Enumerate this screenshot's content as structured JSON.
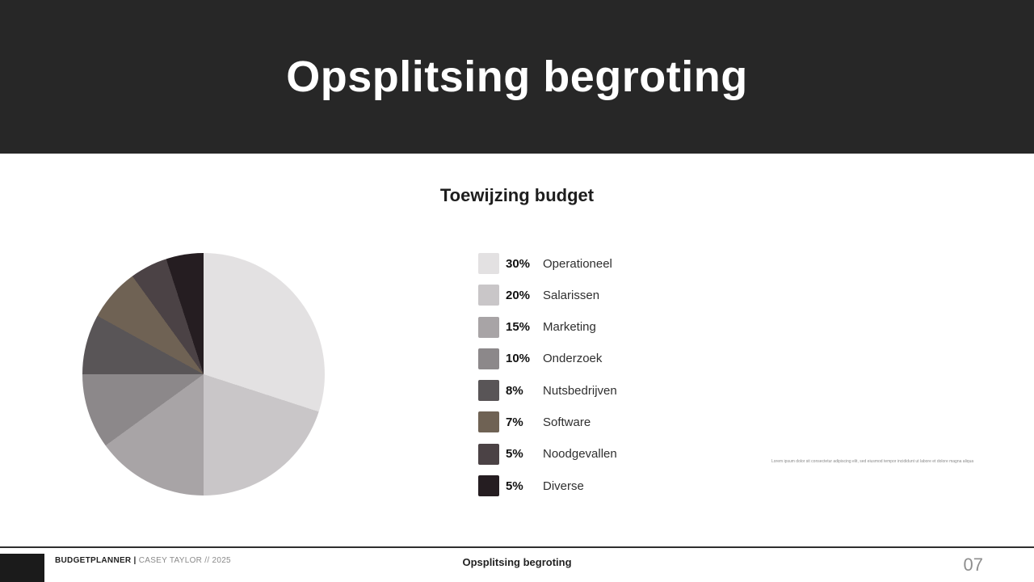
{
  "slide": {
    "title": "Opsplitsing begroting"
  },
  "chart_data": {
    "type": "pie",
    "title": "Toewijzing budget",
    "labels": [
      "Operationeel",
      "Salarissen",
      "Marketing",
      "Onderzoek",
      "Nutsbedrijven",
      "Software",
      "Noodgevallen",
      "Diverse"
    ],
    "values": [
      30,
      20,
      15,
      10,
      8,
      7,
      5,
      5
    ],
    "percent_labels": [
      "30%",
      "20%",
      "15%",
      "10%",
      "8%",
      "7%",
      "5%",
      "5%"
    ],
    "colors": [
      "#e3e1e2",
      "#c9c6c8",
      "#a8a4a6",
      "#8c888a",
      "#595557",
      "#6f6254",
      "#4b4245",
      "#251d21"
    ],
    "legend_position": "right",
    "start_angle_deg": 0,
    "direction": "clockwise"
  },
  "note": {
    "text": "Lorem ipsum dolor sit consectetur adipiscing elit, sed eiusmod tempor incididunt ut labore et dolore magna aliqua. Ut enim ad minim veniam."
  },
  "footer": {
    "brand_bold": "BUDGETPLANNER |",
    "brand_rest": " CASEY TAYLOR // 2025",
    "center_title": "Opsplitsing begroting",
    "page_number": "07"
  }
}
